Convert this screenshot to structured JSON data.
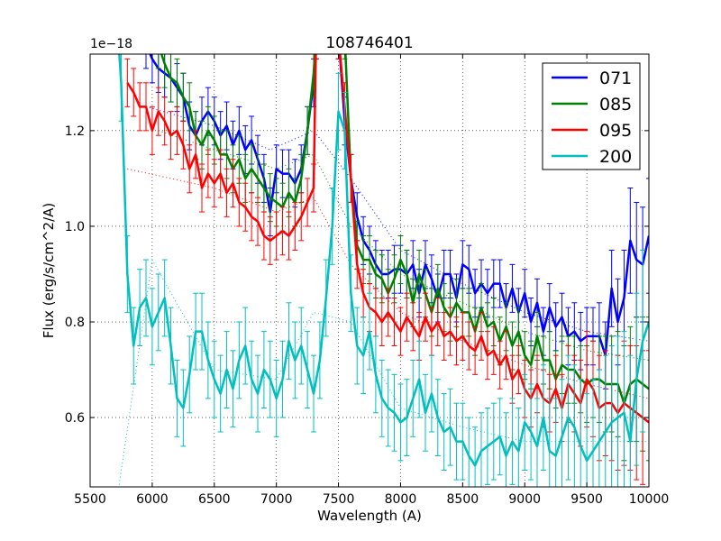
{
  "chart_data": {
    "type": "line",
    "title": "108746401",
    "xlabel": "Wavelength (A)",
    "ylabel": "Flux (erg/s/cm^2/A)",
    "y_offset_label": "1e−18",
    "xlim": [
      5500,
      10000
    ],
    "ylim": [
      0.455,
      1.36
    ],
    "x_ticks": [
      5500,
      6000,
      6500,
      7000,
      7500,
      8000,
      8500,
      9000,
      9500,
      10000
    ],
    "x_tick_labels": [
      "5500",
      "6000",
      "6500",
      "7000",
      "7500",
      "8000",
      "8500",
      "9000",
      "9500",
      "10000"
    ],
    "y_ticks": [
      0.6,
      0.8,
      1.0,
      1.2
    ],
    "y_tick_labels": [
      "0.6",
      "0.8",
      "1.0",
      "1.2"
    ],
    "grid": true,
    "legend_position": "top-right",
    "units_note": "flux values in units of 1e-18",
    "series": [
      {
        "name": "071",
        "color": "#0000ff",
        "x": [
          5950,
          6000,
          6050,
          6100,
          6150,
          6200,
          6250,
          6300,
          6350,
          6400,
          6450,
          6500,
          6550,
          6600,
          6650,
          6700,
          6750,
          6800,
          6850,
          6900,
          6950,
          7000,
          7050,
          7100,
          7150,
          7200,
          7250,
          7300,
          7320,
          7500,
          7550,
          7600,
          7650,
          7700,
          7750,
          7800,
          7850,
          7900,
          7950,
          8000,
          8050,
          8100,
          8150,
          8200,
          8250,
          8300,
          8350,
          8400,
          8450,
          8500,
          8550,
          8600,
          8650,
          8700,
          8750,
          8800,
          8850,
          8900,
          8950,
          9000,
          9050,
          9100,
          9150,
          9200,
          9250,
          9300,
          9350,
          9400,
          9450,
          9500,
          9550,
          9600,
          9650,
          9700,
          9750,
          9800,
          9850,
          9900,
          9950,
          10000
        ],
        "y": [
          1.38,
          1.35,
          1.33,
          1.32,
          1.31,
          1.29,
          1.27,
          1.21,
          1.19,
          1.22,
          1.24,
          1.22,
          1.19,
          1.21,
          1.17,
          1.2,
          1.16,
          1.18,
          1.14,
          1.1,
          1.03,
          1.12,
          1.11,
          1.11,
          1.09,
          1.12,
          1.2,
          1.3,
          1.4,
          1.4,
          1.22,
          1.1,
          1.02,
          0.97,
          0.95,
          0.92,
          0.9,
          0.9,
          0.91,
          0.91,
          0.9,
          0.92,
          0.86,
          0.92,
          0.89,
          0.85,
          0.9,
          0.9,
          0.85,
          0.92,
          0.91,
          0.86,
          0.88,
          0.86,
          0.88,
          0.88,
          0.83,
          0.87,
          0.82,
          0.86,
          0.8,
          0.84,
          0.78,
          0.83,
          0.79,
          0.81,
          0.77,
          0.78,
          0.76,
          0.77,
          0.77,
          0.77,
          0.73,
          0.87,
          0.8,
          0.85,
          0.97,
          0.93,
          0.92,
          0.98
        ],
        "err": [
          0.05,
          0.05,
          0.05,
          0.05,
          0.05,
          0.05,
          0.05,
          0.05,
          0.05,
          0.05,
          0.05,
          0.05,
          0.05,
          0.05,
          0.05,
          0.05,
          0.05,
          0.05,
          0.05,
          0.05,
          0.05,
          0.05,
          0.05,
          0.05,
          0.05,
          0.05,
          0.05,
          0.05,
          0.05,
          0.05,
          0.05,
          0.05,
          0.05,
          0.05,
          0.05,
          0.05,
          0.05,
          0.05,
          0.05,
          0.05,
          0.05,
          0.05,
          0.05,
          0.05,
          0.05,
          0.05,
          0.05,
          0.05,
          0.05,
          0.05,
          0.05,
          0.05,
          0.05,
          0.05,
          0.05,
          0.05,
          0.05,
          0.05,
          0.05,
          0.05,
          0.05,
          0.05,
          0.05,
          0.05,
          0.05,
          0.05,
          0.06,
          0.06,
          0.06,
          0.06,
          0.06,
          0.07,
          0.07,
          0.08,
          0.09,
          0.1,
          0.11,
          0.12,
          0.12,
          0.12
        ],
        "model": {
          "x": [
            5950,
            6500,
            6950,
            7300,
            7600,
            8000,
            8500,
            9000,
            9500,
            10000
          ],
          "y": [
            1.25,
            1.21,
            1.16,
            1.2,
            1.1,
            0.95,
            0.88,
            0.82,
            0.78,
            0.76
          ]
        }
      },
      {
        "name": "085",
        "color": "#008000",
        "x": [
          6050,
          6100,
          6150,
          6200,
          6250,
          6300,
          6350,
          6400,
          6450,
          6500,
          6550,
          6600,
          6650,
          6700,
          6750,
          6800,
          6850,
          6900,
          6950,
          7000,
          7050,
          7100,
          7150,
          7200,
          7250,
          7300,
          7320,
          7550,
          7600,
          7650,
          7700,
          7750,
          7800,
          7850,
          7900,
          7950,
          8000,
          8050,
          8100,
          8150,
          8200,
          8250,
          8300,
          8350,
          8400,
          8450,
          8500,
          8550,
          8600,
          8650,
          8700,
          8750,
          8800,
          8850,
          8900,
          8950,
          9000,
          9050,
          9100,
          9150,
          9200,
          9250,
          9300,
          9350,
          9400,
          9450,
          9500,
          9550,
          9600,
          9650,
          9700,
          9750,
          9800,
          9850,
          9900,
          9950,
          10000
        ],
        "y": [
          1.38,
          1.34,
          1.31,
          1.3,
          1.27,
          1.25,
          1.19,
          1.17,
          1.2,
          1.18,
          1.15,
          1.15,
          1.12,
          1.14,
          1.1,
          1.12,
          1.1,
          1.08,
          1.06,
          1.05,
          1.04,
          1.07,
          1.05,
          1.1,
          1.2,
          1.32,
          1.4,
          1.4,
          1.1,
          0.96,
          0.93,
          0.93,
          0.9,
          0.89,
          0.86,
          0.89,
          0.93,
          0.9,
          0.84,
          0.9,
          0.86,
          0.82,
          0.87,
          0.83,
          0.81,
          0.84,
          0.82,
          0.82,
          0.78,
          0.83,
          0.79,
          0.8,
          0.76,
          0.79,
          0.75,
          0.78,
          0.73,
          0.71,
          0.77,
          0.72,
          0.72,
          0.68,
          0.71,
          0.7,
          0.7,
          0.68,
          0.67,
          0.68,
          0.68,
          0.67,
          0.67,
          0.67,
          0.63,
          0.67,
          0.68,
          0.67,
          0.66
        ],
        "err": [
          0.05,
          0.05,
          0.05,
          0.05,
          0.05,
          0.05,
          0.05,
          0.05,
          0.05,
          0.05,
          0.05,
          0.05,
          0.05,
          0.05,
          0.05,
          0.05,
          0.05,
          0.05,
          0.05,
          0.05,
          0.05,
          0.05,
          0.05,
          0.05,
          0.05,
          0.05,
          0.05,
          0.05,
          0.05,
          0.05,
          0.05,
          0.05,
          0.05,
          0.05,
          0.05,
          0.05,
          0.05,
          0.05,
          0.05,
          0.05,
          0.05,
          0.05,
          0.05,
          0.05,
          0.05,
          0.05,
          0.05,
          0.05,
          0.05,
          0.05,
          0.05,
          0.05,
          0.05,
          0.05,
          0.05,
          0.05,
          0.05,
          0.05,
          0.05,
          0.05,
          0.06,
          0.06,
          0.06,
          0.07,
          0.07,
          0.07,
          0.08,
          0.08,
          0.09,
          0.1,
          0.1,
          0.11,
          0.12,
          0.12,
          0.13,
          0.14,
          0.15
        ],
        "model": {
          "x": [
            6050,
            6500,
            7000,
            7300,
            7600,
            8000,
            8500,
            9000,
            9500,
            10000
          ],
          "y": [
            1.2,
            1.16,
            1.12,
            1.15,
            1.0,
            0.9,
            0.84,
            0.78,
            0.74,
            0.72
          ]
        }
      },
      {
        "name": "095",
        "color": "#ff0000",
        "x": [
          5800,
          5850,
          5900,
          5950,
          6000,
          6050,
          6100,
          6150,
          6200,
          6250,
          6300,
          6350,
          6400,
          6450,
          6500,
          6550,
          6600,
          6650,
          6700,
          6750,
          6800,
          6850,
          6900,
          6950,
          7000,
          7050,
          7100,
          7150,
          7200,
          7250,
          7300,
          7320,
          7500,
          7550,
          7600,
          7650,
          7700,
          7750,
          7800,
          7850,
          7900,
          7950,
          8000,
          8050,
          8100,
          8150,
          8200,
          8250,
          8300,
          8350,
          8400,
          8450,
          8500,
          8550,
          8600,
          8650,
          8700,
          8750,
          8800,
          8850,
          8900,
          8950,
          9000,
          9050,
          9100,
          9150,
          9200,
          9250,
          9300,
          9350,
          9400,
          9450,
          9500,
          9550,
          9600,
          9650,
          9700,
          9750,
          9800,
          9850,
          9900,
          9950,
          10000
        ],
        "y": [
          1.3,
          1.28,
          1.25,
          1.25,
          1.2,
          1.24,
          1.22,
          1.19,
          1.2,
          1.17,
          1.12,
          1.15,
          1.08,
          1.11,
          1.09,
          1.11,
          1.07,
          1.09,
          1.05,
          1.04,
          1.02,
          1.01,
          0.98,
          0.97,
          0.98,
          0.99,
          0.98,
          1.0,
          1.02,
          1.05,
          1.08,
          1.4,
          1.4,
          1.25,
          1.1,
          0.92,
          0.86,
          0.83,
          0.82,
          0.8,
          0.82,
          0.8,
          0.78,
          0.81,
          0.79,
          0.77,
          0.81,
          0.78,
          0.8,
          0.77,
          0.78,
          0.76,
          0.77,
          0.75,
          0.74,
          0.77,
          0.73,
          0.74,
          0.71,
          0.73,
          0.68,
          0.7,
          0.66,
          0.64,
          0.67,
          0.64,
          0.63,
          0.66,
          0.62,
          0.67,
          0.65,
          0.63,
          0.68,
          0.66,
          0.62,
          0.63,
          0.63,
          0.61,
          0.63,
          0.62,
          0.61,
          0.6,
          0.59
        ],
        "err": [
          0.05,
          0.05,
          0.05,
          0.05,
          0.05,
          0.05,
          0.05,
          0.05,
          0.05,
          0.05,
          0.05,
          0.05,
          0.05,
          0.05,
          0.05,
          0.05,
          0.05,
          0.05,
          0.05,
          0.05,
          0.05,
          0.05,
          0.05,
          0.05,
          0.05,
          0.05,
          0.05,
          0.05,
          0.05,
          0.05,
          0.05,
          0.05,
          0.05,
          0.05,
          0.05,
          0.05,
          0.05,
          0.05,
          0.05,
          0.05,
          0.05,
          0.05,
          0.05,
          0.05,
          0.05,
          0.05,
          0.05,
          0.05,
          0.05,
          0.05,
          0.05,
          0.05,
          0.05,
          0.05,
          0.05,
          0.05,
          0.05,
          0.05,
          0.05,
          0.05,
          0.05,
          0.05,
          0.06,
          0.06,
          0.06,
          0.06,
          0.06,
          0.07,
          0.07,
          0.08,
          0.08,
          0.09,
          0.1,
          0.1,
          0.11,
          0.11,
          0.12,
          0.12,
          0.13,
          0.13,
          0.14,
          0.14,
          0.15
        ],
        "model": {
          "x": [
            5800,
            6500,
            7000,
            7300,
            7600,
            8000,
            8500,
            9000,
            9500,
            10000
          ],
          "y": [
            1.12,
            1.08,
            1.03,
            1.06,
            0.92,
            0.82,
            0.76,
            0.71,
            0.67,
            0.64
          ]
        }
      },
      {
        "name": "200",
        "color": "#00bfbf",
        "x": [
          5700,
          5750,
          5800,
          5850,
          5900,
          5950,
          6000,
          6050,
          6100,
          6150,
          6200,
          6250,
          6300,
          6350,
          6400,
          6450,
          6500,
          6550,
          6600,
          6650,
          6700,
          6750,
          6800,
          6850,
          6900,
          6950,
          7000,
          7050,
          7100,
          7150,
          7200,
          7250,
          7300,
          7350,
          7400,
          7450,
          7500,
          7550,
          7600,
          7650,
          7700,
          7750,
          7800,
          7850,
          7900,
          7950,
          8000,
          8050,
          8100,
          8150,
          8200,
          8250,
          8300,
          8350,
          8400,
          8450,
          8500,
          8550,
          8600,
          8650,
          8700,
          8750,
          8800,
          8850,
          8900,
          8950,
          9000,
          9050,
          9100,
          9150,
          9200,
          9250,
          9300,
          9350,
          9400,
          9450,
          9500,
          9550,
          9600,
          9650,
          9700,
          9750,
          9800,
          9850,
          9900,
          9950,
          10000
        ],
        "y": [
          1.5,
          1.3,
          0.9,
          0.75,
          0.83,
          0.85,
          0.79,
          0.82,
          0.85,
          0.75,
          0.64,
          0.62,
          0.69,
          0.78,
          0.78,
          0.72,
          0.68,
          0.65,
          0.7,
          0.66,
          0.72,
          0.75,
          0.68,
          0.65,
          0.7,
          0.68,
          0.64,
          0.68,
          0.76,
          0.72,
          0.75,
          0.7,
          0.65,
          0.72,
          0.85,
          1.0,
          1.24,
          1.2,
          0.86,
          0.75,
          0.73,
          0.78,
          0.69,
          0.64,
          0.62,
          0.61,
          0.59,
          0.6,
          0.64,
          0.68,
          0.61,
          0.65,
          0.6,
          0.57,
          0.58,
          0.55,
          0.55,
          0.52,
          0.5,
          0.53,
          0.54,
          0.55,
          0.56,
          0.52,
          0.55,
          0.53,
          0.59,
          0.57,
          0.54,
          0.6,
          0.53,
          0.52,
          0.56,
          0.6,
          0.58,
          0.54,
          0.51,
          0.53,
          0.55,
          0.57,
          0.59,
          0.6,
          0.61,
          0.55,
          0.68,
          0.76,
          0.8
        ],
        "err": [
          0.08,
          0.08,
          0.08,
          0.08,
          0.08,
          0.08,
          0.08,
          0.08,
          0.08,
          0.08,
          0.08,
          0.08,
          0.08,
          0.08,
          0.08,
          0.08,
          0.08,
          0.08,
          0.08,
          0.08,
          0.08,
          0.08,
          0.08,
          0.08,
          0.08,
          0.08,
          0.08,
          0.08,
          0.08,
          0.08,
          0.08,
          0.08,
          0.08,
          0.08,
          0.08,
          0.08,
          0.08,
          0.08,
          0.08,
          0.08,
          0.08,
          0.08,
          0.08,
          0.08,
          0.08,
          0.08,
          0.08,
          0.08,
          0.08,
          0.08,
          0.08,
          0.08,
          0.08,
          0.08,
          0.08,
          0.08,
          0.08,
          0.08,
          0.08,
          0.08,
          0.08,
          0.08,
          0.08,
          0.09,
          0.09,
          0.09,
          0.1,
          0.1,
          0.1,
          0.11,
          0.11,
          0.12,
          0.12,
          0.13,
          0.13,
          0.14,
          0.14,
          0.15,
          0.15,
          0.16,
          0.16,
          0.17,
          0.17,
          0.18,
          0.18,
          0.19,
          0.2
        ],
        "model": {
          "x": [
            5700,
            6000,
            6500,
            7000,
            7300,
            7600,
            8000,
            8500,
            9000,
            9500,
            10000
          ],
          "y": [
            0.4,
            0.93,
            0.7,
            0.68,
            0.82,
            0.8,
            0.62,
            0.58,
            0.55,
            0.55,
            0.55
          ]
        }
      }
    ]
  }
}
